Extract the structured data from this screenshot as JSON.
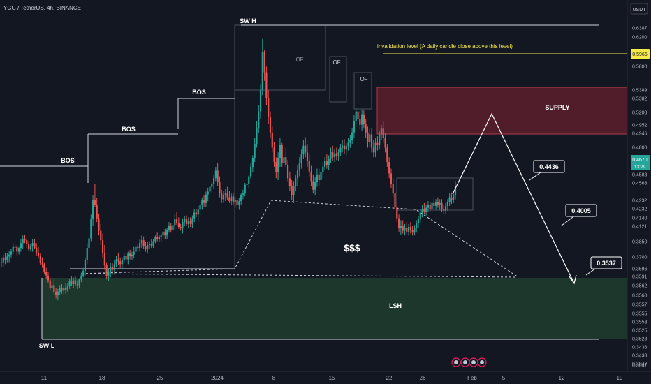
{
  "header": {
    "symbol": "YGG / TetherUS, 4h, BINANCE",
    "currency": "USDT"
  },
  "chart_data": {
    "type": "candlestick",
    "x_ticks": [
      "11",
      "18",
      "25",
      "2024",
      "8",
      "15",
      "22",
      "26",
      "Feb",
      "5",
      "12",
      "19"
    ],
    "price_labels": [
      "0.6387",
      "0.6200",
      "0.5800",
      "0.5389",
      "0.5382",
      "0.5200",
      "0.4952",
      "0.4946",
      "0.4800",
      "0.4588",
      "0.4568",
      "0.4232",
      "0.4232",
      "0.4140",
      "0.4121",
      "0.3850",
      "0.3700",
      "0.3596",
      "0.3591",
      "0.3562",
      "0.3560",
      "0.3557",
      "0.3555",
      "0.3553",
      "0.3525",
      "0.3523",
      "0.3438",
      "0.3438",
      "0.3047",
      "0.3047"
    ],
    "highlight_labels": {
      "invalidation": "0.5966",
      "current_price": "0.4670",
      "countdown": "13:29"
    },
    "colors": {
      "up": "#26a69a",
      "down": "#ef5350",
      "supply_fill": "#5d1f2c",
      "lsh_fill": "#1f3b2e",
      "invalidation": "#f5e945",
      "current": "#26a69a"
    },
    "candles": [
      [
        0.39,
        0.395,
        0.385,
        0.39
      ],
      [
        0.39,
        0.398,
        0.385,
        0.395
      ],
      [
        0.395,
        0.4,
        0.388,
        0.392
      ],
      [
        0.392,
        0.4,
        0.39,
        0.396
      ],
      [
        0.396,
        0.402,
        0.39,
        0.398
      ],
      [
        0.398,
        0.404,
        0.395,
        0.401
      ],
      [
        0.401,
        0.41,
        0.398,
        0.406
      ],
      [
        0.406,
        0.413,
        0.401,
        0.406
      ],
      [
        0.406,
        0.408,
        0.397,
        0.401
      ],
      [
        0.401,
        0.406,
        0.398,
        0.405
      ],
      [
        0.405,
        0.414,
        0.401,
        0.41
      ],
      [
        0.41,
        0.418,
        0.404,
        0.414
      ],
      [
        0.414,
        0.419,
        0.41,
        0.413
      ],
      [
        0.413,
        0.415,
        0.405,
        0.409
      ],
      [
        0.409,
        0.412,
        0.402,
        0.404
      ],
      [
        0.404,
        0.409,
        0.401,
        0.407
      ],
      [
        0.407,
        0.414,
        0.401,
        0.41
      ],
      [
        0.41,
        0.414,
        0.404,
        0.405
      ],
      [
        0.405,
        0.41,
        0.397,
        0.4
      ],
      [
        0.4,
        0.406,
        0.394,
        0.397
      ],
      [
        0.397,
        0.399,
        0.387,
        0.389
      ],
      [
        0.389,
        0.395,
        0.384,
        0.388
      ],
      [
        0.388,
        0.39,
        0.378,
        0.38
      ],
      [
        0.38,
        0.384,
        0.373,
        0.376
      ],
      [
        0.376,
        0.38,
        0.368,
        0.371
      ],
      [
        0.371,
        0.374,
        0.36,
        0.363
      ],
      [
        0.363,
        0.372,
        0.358,
        0.366
      ],
      [
        0.366,
        0.372,
        0.356,
        0.359
      ],
      [
        0.359,
        0.363,
        0.352,
        0.356
      ],
      [
        0.356,
        0.362,
        0.35,
        0.359
      ],
      [
        0.359,
        0.366,
        0.356,
        0.363
      ],
      [
        0.363,
        0.367,
        0.357,
        0.36
      ],
      [
        0.36,
        0.365,
        0.356,
        0.363
      ],
      [
        0.363,
        0.368,
        0.357,
        0.361
      ],
      [
        0.361,
        0.368,
        0.359,
        0.365
      ],
      [
        0.365,
        0.373,
        0.362,
        0.37
      ],
      [
        0.37,
        0.375,
        0.365,
        0.367
      ],
      [
        0.367,
        0.374,
        0.363,
        0.371
      ],
      [
        0.371,
        0.375,
        0.365,
        0.367
      ],
      [
        0.367,
        0.371,
        0.362,
        0.366
      ],
      [
        0.366,
        0.373,
        0.363,
        0.372
      ],
      [
        0.372,
        0.379,
        0.369,
        0.376
      ],
      [
        0.376,
        0.384,
        0.374,
        0.381
      ],
      [
        0.381,
        0.395,
        0.376,
        0.392
      ],
      [
        0.392,
        0.41,
        0.388,
        0.405
      ],
      [
        0.405,
        0.42,
        0.4,
        0.415
      ],
      [
        0.415,
        0.44,
        0.412,
        0.435
      ],
      [
        0.435,
        0.46,
        0.428,
        0.455
      ],
      [
        0.455,
        0.472,
        0.448,
        0.45
      ],
      [
        0.45,
        0.457,
        0.432,
        0.436
      ],
      [
        0.436,
        0.441,
        0.418,
        0.423
      ],
      [
        0.423,
        0.43,
        0.408,
        0.413
      ],
      [
        0.413,
        0.42,
        0.395,
        0.4
      ],
      [
        0.4,
        0.408,
        0.382,
        0.387
      ],
      [
        0.387,
        0.39,
        0.372,
        0.375
      ],
      [
        0.375,
        0.383,
        0.37,
        0.38
      ],
      [
        0.38,
        0.389,
        0.374,
        0.385
      ],
      [
        0.385,
        0.389,
        0.377,
        0.382
      ],
      [
        0.382,
        0.392,
        0.377,
        0.388
      ],
      [
        0.388,
        0.397,
        0.385,
        0.393
      ],
      [
        0.393,
        0.4,
        0.387,
        0.391
      ],
      [
        0.391,
        0.395,
        0.384,
        0.388
      ],
      [
        0.388,
        0.395,
        0.383,
        0.392
      ],
      [
        0.392,
        0.4,
        0.389,
        0.397
      ],
      [
        0.397,
        0.401,
        0.389,
        0.393
      ],
      [
        0.393,
        0.401,
        0.388,
        0.399
      ],
      [
        0.399,
        0.403,
        0.393,
        0.397
      ],
      [
        0.397,
        0.401,
        0.392,
        0.398
      ],
      [
        0.398,
        0.406,
        0.394,
        0.401
      ],
      [
        0.401,
        0.41,
        0.397,
        0.406
      ],
      [
        0.406,
        0.409,
        0.401,
        0.405
      ],
      [
        0.405,
        0.414,
        0.401,
        0.41
      ],
      [
        0.41,
        0.418,
        0.405,
        0.413
      ],
      [
        0.413,
        0.417,
        0.404,
        0.407
      ],
      [
        0.407,
        0.411,
        0.401,
        0.404
      ],
      [
        0.404,
        0.411,
        0.399,
        0.408
      ],
      [
        0.408,
        0.412,
        0.404,
        0.409
      ],
      [
        0.409,
        0.414,
        0.405,
        0.407
      ],
      [
        0.407,
        0.414,
        0.405,
        0.412
      ],
      [
        0.412,
        0.418,
        0.41,
        0.416
      ],
      [
        0.416,
        0.421,
        0.412,
        0.414
      ],
      [
        0.414,
        0.419,
        0.411,
        0.416
      ],
      [
        0.416,
        0.42,
        0.412,
        0.418
      ],
      [
        0.418,
        0.426,
        0.412,
        0.422
      ],
      [
        0.422,
        0.425,
        0.414,
        0.418
      ],
      [
        0.418,
        0.426,
        0.414,
        0.424
      ],
      [
        0.424,
        0.432,
        0.421,
        0.428
      ],
      [
        0.428,
        0.431,
        0.421,
        0.424
      ],
      [
        0.424,
        0.434,
        0.421,
        0.429
      ],
      [
        0.429,
        0.44,
        0.424,
        0.435
      ],
      [
        0.435,
        0.443,
        0.429,
        0.431
      ],
      [
        0.431,
        0.437,
        0.425,
        0.427
      ],
      [
        0.427,
        0.43,
        0.423,
        0.426
      ],
      [
        0.426,
        0.436,
        0.42,
        0.432
      ],
      [
        0.432,
        0.438,
        0.428,
        0.435
      ],
      [
        0.435,
        0.439,
        0.428,
        0.43
      ],
      [
        0.43,
        0.437,
        0.426,
        0.433
      ],
      [
        0.433,
        0.437,
        0.427,
        0.43
      ],
      [
        0.43,
        0.439,
        0.426,
        0.436
      ],
      [
        0.436,
        0.446,
        0.432,
        0.442
      ],
      [
        0.442,
        0.446,
        0.437,
        0.44
      ],
      [
        0.44,
        0.449,
        0.434,
        0.445
      ],
      [
        0.445,
        0.454,
        0.439,
        0.45
      ],
      [
        0.45,
        0.458,
        0.445,
        0.455
      ],
      [
        0.455,
        0.46,
        0.448,
        0.452
      ],
      [
        0.452,
        0.464,
        0.448,
        0.461
      ],
      [
        0.461,
        0.468,
        0.454,
        0.464
      ],
      [
        0.464,
        0.474,
        0.459,
        0.469
      ],
      [
        0.469,
        0.474,
        0.463,
        0.472
      ],
      [
        0.472,
        0.482,
        0.467,
        0.478
      ],
      [
        0.478,
        0.49,
        0.475,
        0.486
      ],
      [
        0.486,
        0.494,
        0.47,
        0.474
      ],
      [
        0.474,
        0.48,
        0.458,
        0.462
      ],
      [
        0.462,
        0.466,
        0.452,
        0.456
      ],
      [
        0.456,
        0.465,
        0.452,
        0.46
      ],
      [
        0.46,
        0.467,
        0.454,
        0.462
      ],
      [
        0.462,
        0.469,
        0.455,
        0.458
      ],
      [
        0.458,
        0.465,
        0.452,
        0.454
      ],
      [
        0.454,
        0.462,
        0.45,
        0.459
      ],
      [
        0.459,
        0.463,
        0.45,
        0.453
      ],
      [
        0.453,
        0.458,
        0.447,
        0.455
      ],
      [
        0.455,
        0.458,
        0.447,
        0.45
      ],
      [
        0.45,
        0.457,
        0.445,
        0.454
      ],
      [
        0.454,
        0.462,
        0.45,
        0.46
      ],
      [
        0.46,
        0.466,
        0.456,
        0.462
      ],
      [
        0.462,
        0.473,
        0.459,
        0.471
      ],
      [
        0.471,
        0.476,
        0.467,
        0.472
      ],
      [
        0.472,
        0.482,
        0.468,
        0.48
      ],
      [
        0.48,
        0.494,
        0.477,
        0.49
      ],
      [
        0.49,
        0.502,
        0.484,
        0.499
      ],
      [
        0.499,
        0.52,
        0.495,
        0.514
      ],
      [
        0.514,
        0.538,
        0.51,
        0.53
      ],
      [
        0.53,
        0.555,
        0.525,
        0.548
      ],
      [
        0.548,
        0.576,
        0.54,
        0.57
      ],
      [
        0.57,
        0.624,
        0.565,
        0.61
      ],
      [
        0.61,
        0.612,
        0.58,
        0.589
      ],
      [
        0.589,
        0.595,
        0.555,
        0.562
      ],
      [
        0.562,
        0.57,
        0.535,
        0.542
      ],
      [
        0.542,
        0.548,
        0.52,
        0.526
      ],
      [
        0.526,
        0.533,
        0.505,
        0.51
      ],
      [
        0.51,
        0.516,
        0.49,
        0.495
      ],
      [
        0.495,
        0.5,
        0.478,
        0.484
      ],
      [
        0.484,
        0.505,
        0.476,
        0.499
      ],
      [
        0.499,
        0.52,
        0.49,
        0.513
      ],
      [
        0.513,
        0.515,
        0.49,
        0.494
      ],
      [
        0.494,
        0.505,
        0.486,
        0.5
      ],
      [
        0.5,
        0.51,
        0.49,
        0.492
      ],
      [
        0.492,
        0.497,
        0.475,
        0.478
      ],
      [
        0.478,
        0.485,
        0.465,
        0.47
      ],
      [
        0.47,
        0.476,
        0.455,
        0.46
      ],
      [
        0.46,
        0.475,
        0.452,
        0.47
      ],
      [
        0.47,
        0.482,
        0.465,
        0.478
      ],
      [
        0.478,
        0.492,
        0.47,
        0.486
      ],
      [
        0.486,
        0.5,
        0.48,
        0.494
      ],
      [
        0.494,
        0.508,
        0.488,
        0.503
      ],
      [
        0.503,
        0.518,
        0.498,
        0.512
      ],
      [
        0.512,
        0.521,
        0.5,
        0.505
      ],
      [
        0.505,
        0.514,
        0.49,
        0.496
      ],
      [
        0.496,
        0.503,
        0.48,
        0.485
      ],
      [
        0.485,
        0.491,
        0.47,
        0.475
      ],
      [
        0.475,
        0.482,
        0.462,
        0.466
      ],
      [
        0.466,
        0.479,
        0.46,
        0.474
      ],
      [
        0.474,
        0.488,
        0.469,
        0.482
      ],
      [
        0.482,
        0.488,
        0.47,
        0.476
      ],
      [
        0.476,
        0.486,
        0.472,
        0.484
      ],
      [
        0.484,
        0.495,
        0.478,
        0.49
      ],
      [
        0.49,
        0.5,
        0.486,
        0.496
      ],
      [
        0.496,
        0.503,
        0.488,
        0.492
      ],
      [
        0.492,
        0.502,
        0.487,
        0.498
      ],
      [
        0.498,
        0.51,
        0.494,
        0.506
      ],
      [
        0.506,
        0.512,
        0.496,
        0.5
      ],
      [
        0.5,
        0.509,
        0.495,
        0.504
      ],
      [
        0.504,
        0.51,
        0.497,
        0.501
      ],
      [
        0.501,
        0.508,
        0.496,
        0.505
      ],
      [
        0.505,
        0.514,
        0.501,
        0.51
      ],
      [
        0.51,
        0.518,
        0.505,
        0.512
      ],
      [
        0.512,
        0.519,
        0.503,
        0.508
      ],
      [
        0.508,
        0.515,
        0.502,
        0.512
      ],
      [
        0.512,
        0.52,
        0.507,
        0.515
      ],
      [
        0.515,
        0.523,
        0.51,
        0.518
      ],
      [
        0.518,
        0.531,
        0.514,
        0.526
      ],
      [
        0.526,
        0.544,
        0.52,
        0.538
      ],
      [
        0.538,
        0.552,
        0.532,
        0.548
      ],
      [
        0.548,
        0.556,
        0.535,
        0.54
      ],
      [
        0.54,
        0.548,
        0.529,
        0.534
      ],
      [
        0.534,
        0.55,
        0.528,
        0.545
      ],
      [
        0.545,
        0.549,
        0.53,
        0.535
      ],
      [
        0.535,
        0.54,
        0.52,
        0.526
      ],
      [
        0.526,
        0.532,
        0.51,
        0.516
      ],
      [
        0.516,
        0.53,
        0.51,
        0.524
      ],
      [
        0.524,
        0.53,
        0.505,
        0.51
      ],
      [
        0.51,
        0.518,
        0.5,
        0.505
      ],
      [
        0.505,
        0.52,
        0.5,
        0.515
      ],
      [
        0.515,
        0.522,
        0.507,
        0.513
      ],
      [
        0.513,
        0.528,
        0.508,
        0.524
      ],
      [
        0.524,
        0.534,
        0.518,
        0.53
      ],
      [
        0.53,
        0.538,
        0.515,
        0.52
      ],
      [
        0.52,
        0.525,
        0.505,
        0.51
      ],
      [
        0.51,
        0.514,
        0.49,
        0.495
      ],
      [
        0.495,
        0.5,
        0.478,
        0.483
      ],
      [
        0.483,
        0.488,
        0.468,
        0.472
      ],
      [
        0.472,
        0.478,
        0.458,
        0.462
      ],
      [
        0.462,
        0.466,
        0.445,
        0.448
      ],
      [
        0.448,
        0.452,
        0.432,
        0.436
      ],
      [
        0.436,
        0.44,
        0.422,
        0.426
      ],
      [
        0.426,
        0.434,
        0.419,
        0.428
      ],
      [
        0.428,
        0.434,
        0.42,
        0.423
      ],
      [
        0.423,
        0.43,
        0.418,
        0.426
      ],
      [
        0.426,
        0.432,
        0.419,
        0.422
      ],
      [
        0.422,
        0.43,
        0.418,
        0.427
      ],
      [
        0.427,
        0.432,
        0.42,
        0.424
      ],
      [
        0.424,
        0.428,
        0.418,
        0.421
      ],
      [
        0.421,
        0.429,
        0.418,
        0.426
      ],
      [
        0.426,
        0.434,
        0.421,
        0.431
      ],
      [
        0.431,
        0.438,
        0.426,
        0.435
      ],
      [
        0.435,
        0.446,
        0.431,
        0.442
      ],
      [
        0.442,
        0.45,
        0.437,
        0.446
      ],
      [
        0.446,
        0.452,
        0.44,
        0.443
      ],
      [
        0.443,
        0.45,
        0.439,
        0.447
      ],
      [
        0.447,
        0.454,
        0.443,
        0.45
      ],
      [
        0.45,
        0.453,
        0.443,
        0.446
      ],
      [
        0.446,
        0.454,
        0.443,
        0.452
      ],
      [
        0.452,
        0.458,
        0.446,
        0.449
      ],
      [
        0.449,
        0.456,
        0.445,
        0.453
      ],
      [
        0.453,
        0.458,
        0.447,
        0.45
      ],
      [
        0.45,
        0.456,
        0.445,
        0.452
      ],
      [
        0.452,
        0.456,
        0.443,
        0.446
      ],
      [
        0.446,
        0.45,
        0.441,
        0.444
      ],
      [
        0.444,
        0.452,
        0.441,
        0.449
      ],
      [
        0.449,
        0.456,
        0.444,
        0.453
      ],
      [
        0.453,
        0.462,
        0.449,
        0.458
      ],
      [
        0.458,
        0.463,
        0.451,
        0.455
      ],
      [
        0.455,
        0.463,
        0.452,
        0.46
      ],
      [
        0.46,
        0.475,
        0.456,
        0.467
      ]
    ]
  },
  "annotations": {
    "sw_h": "SW H",
    "sw_l": "SW L",
    "bos_1": "BOS",
    "bos_2": "BOS",
    "bos_3": "BOS",
    "of_1": "OF",
    "of_2": "OF",
    "of_3": "OF",
    "invalidation": "invalidation level (A daily candle close above this level)",
    "supply": "SUPPLY",
    "liquidity": "$$$",
    "lsh": "LSH",
    "target_1": "0.4436",
    "target_2": "0.4005",
    "target_3": "0.3537"
  }
}
